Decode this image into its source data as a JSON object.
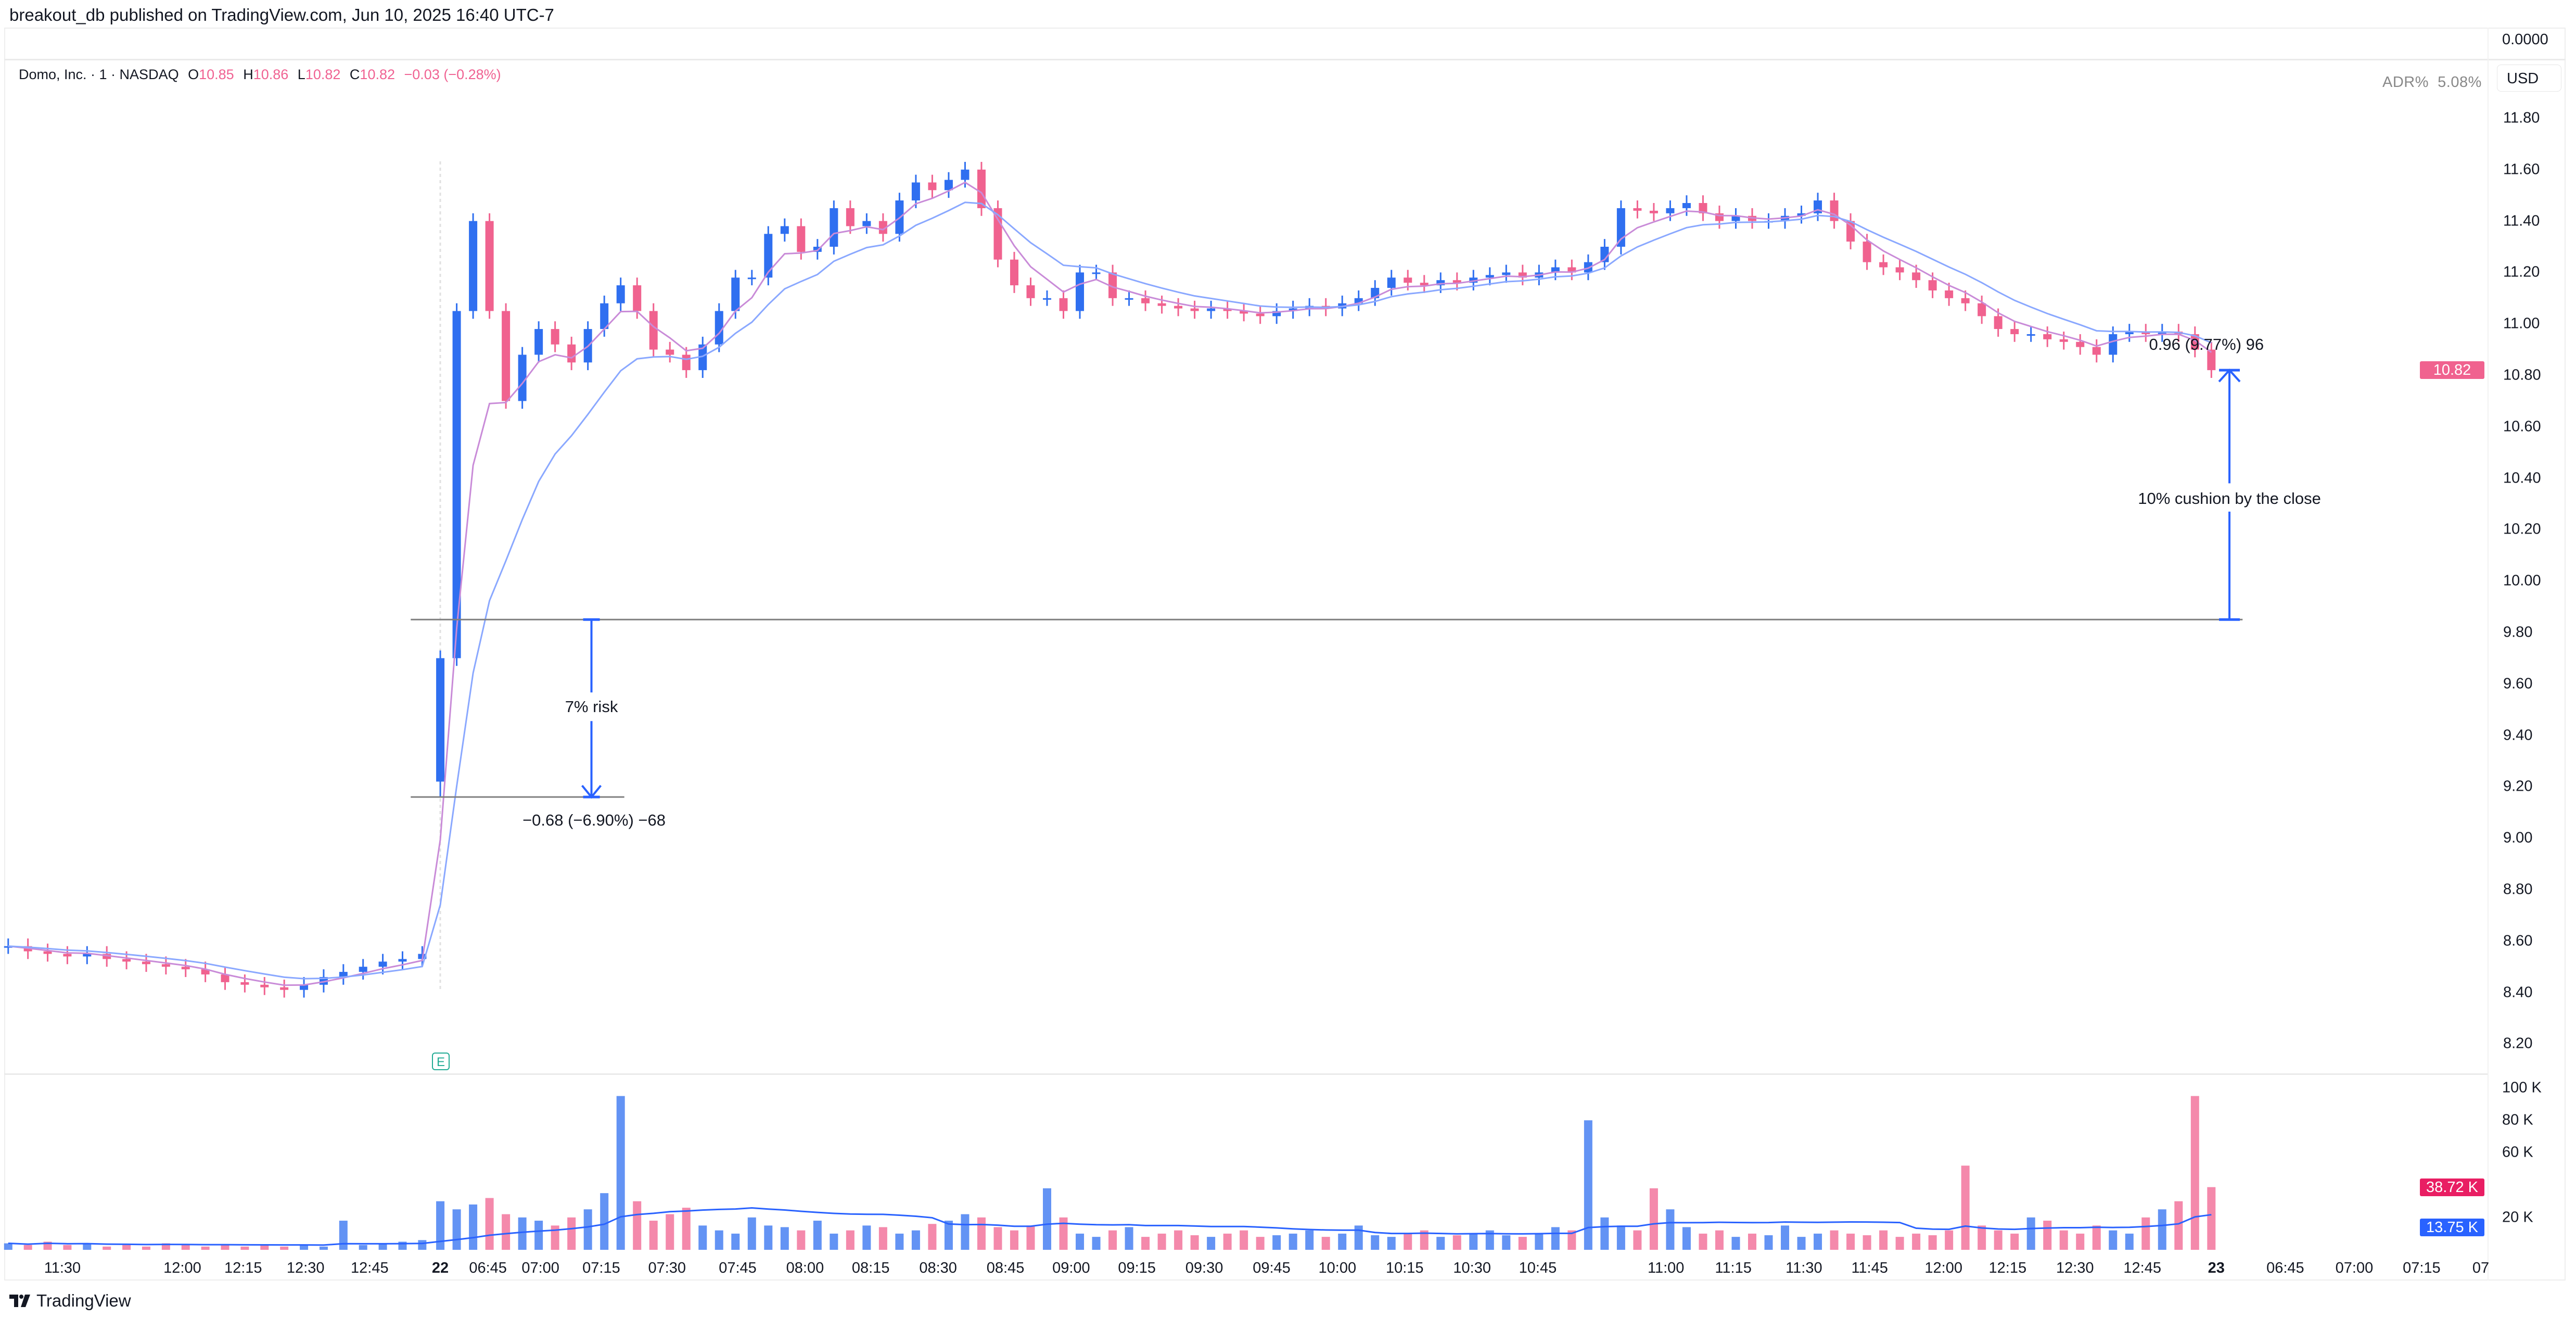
{
  "header": {
    "published": "breakout_db published on TradingView.com, Jun 10, 2025 16:40 UTC-7"
  },
  "legend": {
    "symbol": "Domo, Inc. · 1 · NASDAQ",
    "o_label": "O",
    "o": "10.85",
    "h_label": "H",
    "h": "10.86",
    "l_label": "L",
    "l": "10.82",
    "c_label": "C",
    "c": "10.82",
    "change": "−0.03 (−0.28%)"
  },
  "indicator": {
    "name": "ADR%",
    "value": "5.08%"
  },
  "top_pane_value": "0.0000",
  "currency": "USD",
  "footer": {
    "brand": "TradingView",
    "logo_icon": "tradingview-logo-icon"
  },
  "earnings_marker": "E",
  "colors": {
    "up": "#2f6ff0",
    "down": "#f0628f",
    "ma_fast": "#c98bd8",
    "ma_slow": "#8aa8ff",
    "annotation": "#2962ff",
    "level_line": "#808080"
  },
  "chart_data": {
    "type": "candlestick",
    "price_axis": {
      "ticks": [
        "11.80",
        "11.60",
        "11.40",
        "11.20",
        "11.00",
        "10.80",
        "10.60",
        "10.40",
        "10.20",
        "10.00",
        "9.80",
        "9.60",
        "9.40",
        "9.20",
        "9.00",
        "8.80",
        "8.60",
        "8.40",
        "8.20"
      ],
      "range": [
        8.1,
        11.9
      ]
    },
    "last_price": "10.82",
    "volume_axis": {
      "ticks": [
        "100 K",
        "80 K",
        "60 K",
        "20 K"
      ],
      "last_volume": "38.72 K",
      "volume_ma": "13.75 K"
    },
    "time_axis": [
      "11:30",
      "12:00",
      "12:15",
      "12:30",
      "12:45",
      "22",
      "06:45",
      "07:00",
      "07:15",
      "07:30",
      "07:45",
      "08:00",
      "08:15",
      "08:30",
      "08:45",
      "09:00",
      "09:15",
      "09:30",
      "09:45",
      "10:00",
      "10:15",
      "10:30",
      "10:45",
      "11:00",
      "11:15",
      "11:30",
      "11:45",
      "12:00",
      "12:15",
      "12:30",
      "12:45",
      "23",
      "06:45",
      "07:00",
      "07:15",
      "07"
    ],
    "session_first_bar": {
      "open": 9.22,
      "low": 9.16
    },
    "premarket_bars": [
      [
        8.58,
        4
      ],
      [
        8.56,
        3
      ],
      [
        8.55,
        5
      ],
      [
        8.54,
        3
      ],
      [
        8.55,
        4
      ],
      [
        8.53,
        2
      ],
      [
        8.52,
        3
      ],
      [
        8.51,
        2
      ],
      [
        8.5,
        4
      ],
      [
        8.49,
        3
      ],
      [
        8.47,
        2
      ],
      [
        8.44,
        3
      ],
      [
        8.43,
        2
      ],
      [
        8.42,
        3
      ],
      [
        8.41,
        2
      ],
      [
        8.43,
        3
      ],
      [
        8.46,
        2
      ],
      [
        8.48,
        18
      ],
      [
        8.5,
        3
      ],
      [
        8.52,
        4
      ],
      [
        8.53,
        5
      ],
      [
        8.55,
        6
      ]
    ],
    "session_bars": [
      [
        9.7,
        30
      ],
      [
        11.05,
        25
      ],
      [
        11.4,
        28
      ],
      [
        11.05,
        32
      ],
      [
        10.7,
        22
      ],
      [
        10.88,
        20
      ],
      [
        10.98,
        18
      ],
      [
        10.92,
        15
      ],
      [
        10.85,
        20
      ],
      [
        10.98,
        25
      ],
      [
        11.08,
        35
      ],
      [
        11.15,
        95
      ],
      [
        11.05,
        30
      ],
      [
        10.9,
        18
      ],
      [
        10.88,
        22
      ],
      [
        10.82,
        26
      ],
      [
        10.92,
        15
      ],
      [
        11.05,
        12
      ],
      [
        11.18,
        10
      ],
      [
        11.18,
        20
      ],
      [
        11.35,
        15
      ],
      [
        11.38,
        14
      ],
      [
        11.28,
        12
      ],
      [
        11.3,
        18
      ],
      [
        11.45,
        10
      ],
      [
        11.38,
        12
      ],
      [
        11.4,
        15
      ],
      [
        11.35,
        14
      ],
      [
        11.48,
        10
      ],
      [
        11.55,
        12
      ],
      [
        11.52,
        16
      ],
      [
        11.56,
        18
      ],
      [
        11.6,
        22
      ],
      [
        11.45,
        20
      ],
      [
        11.25,
        14
      ],
      [
        11.15,
        12
      ],
      [
        11.1,
        15
      ],
      [
        11.1,
        38
      ],
      [
        11.05,
        20
      ],
      [
        11.2,
        10
      ],
      [
        11.2,
        8
      ],
      [
        11.1,
        12
      ],
      [
        11.1,
        14
      ],
      [
        11.08,
        8
      ],
      [
        11.07,
        10
      ],
      [
        11.06,
        12
      ],
      [
        11.05,
        9
      ],
      [
        11.06,
        8
      ],
      [
        11.05,
        10
      ],
      [
        11.04,
        12
      ],
      [
        11.03,
        8
      ],
      [
        11.05,
        9
      ],
      [
        11.06,
        10
      ],
      [
        11.07,
        12
      ],
      [
        11.06,
        8
      ],
      [
        11.08,
        10
      ],
      [
        11.1,
        15
      ],
      [
        11.14,
        9
      ],
      [
        11.18,
        8
      ],
      [
        11.16,
        10
      ],
      [
        11.15,
        12
      ],
      [
        11.17,
        8
      ],
      [
        11.16,
        9
      ],
      [
        11.18,
        10
      ],
      [
        11.19,
        12
      ],
      [
        11.2,
        9
      ],
      [
        11.18,
        8
      ],
      [
        11.2,
        10
      ],
      [
        11.22,
        14
      ],
      [
        11.2,
        12
      ],
      [
        11.24,
        80
      ],
      [
        11.3,
        20
      ],
      [
        11.45,
        15
      ],
      [
        11.44,
        12
      ],
      [
        11.43,
        38
      ],
      [
        11.45,
        25
      ],
      [
        11.47,
        14
      ],
      [
        11.43,
        10
      ],
      [
        11.4,
        12
      ],
      [
        11.42,
        8
      ],
      [
        11.4,
        10
      ],
      [
        11.4,
        9
      ],
      [
        11.42,
        15
      ],
      [
        11.43,
        8
      ],
      [
        11.48,
        10
      ],
      [
        11.4,
        12
      ],
      [
        11.32,
        10
      ],
      [
        11.24,
        9
      ],
      [
        11.22,
        12
      ],
      [
        11.2,
        8
      ],
      [
        11.17,
        10
      ],
      [
        11.13,
        9
      ],
      [
        11.1,
        12
      ],
      [
        11.08,
        52
      ],
      [
        11.03,
        15
      ],
      [
        10.98,
        12
      ],
      [
        10.96,
        10
      ],
      [
        10.96,
        20
      ],
      [
        10.94,
        18
      ],
      [
        10.93,
        12
      ],
      [
        10.91,
        10
      ],
      [
        10.88,
        15
      ],
      [
        10.96,
        12
      ],
      [
        10.97,
        10
      ],
      [
        10.96,
        20
      ],
      [
        10.97,
        25
      ],
      [
        10.96,
        30
      ],
      [
        10.9,
        95
      ],
      [
        10.82,
        38.72
      ]
    ],
    "annotations": {
      "entry_level": 9.85,
      "stop_level": 9.16,
      "risk_label": "7% risk",
      "risk_measure": "−0.68 (−6.90%) −68",
      "cushion_label": "10% cushion by the close",
      "cushion_measure": "0.96 (9.77%) 96"
    }
  }
}
